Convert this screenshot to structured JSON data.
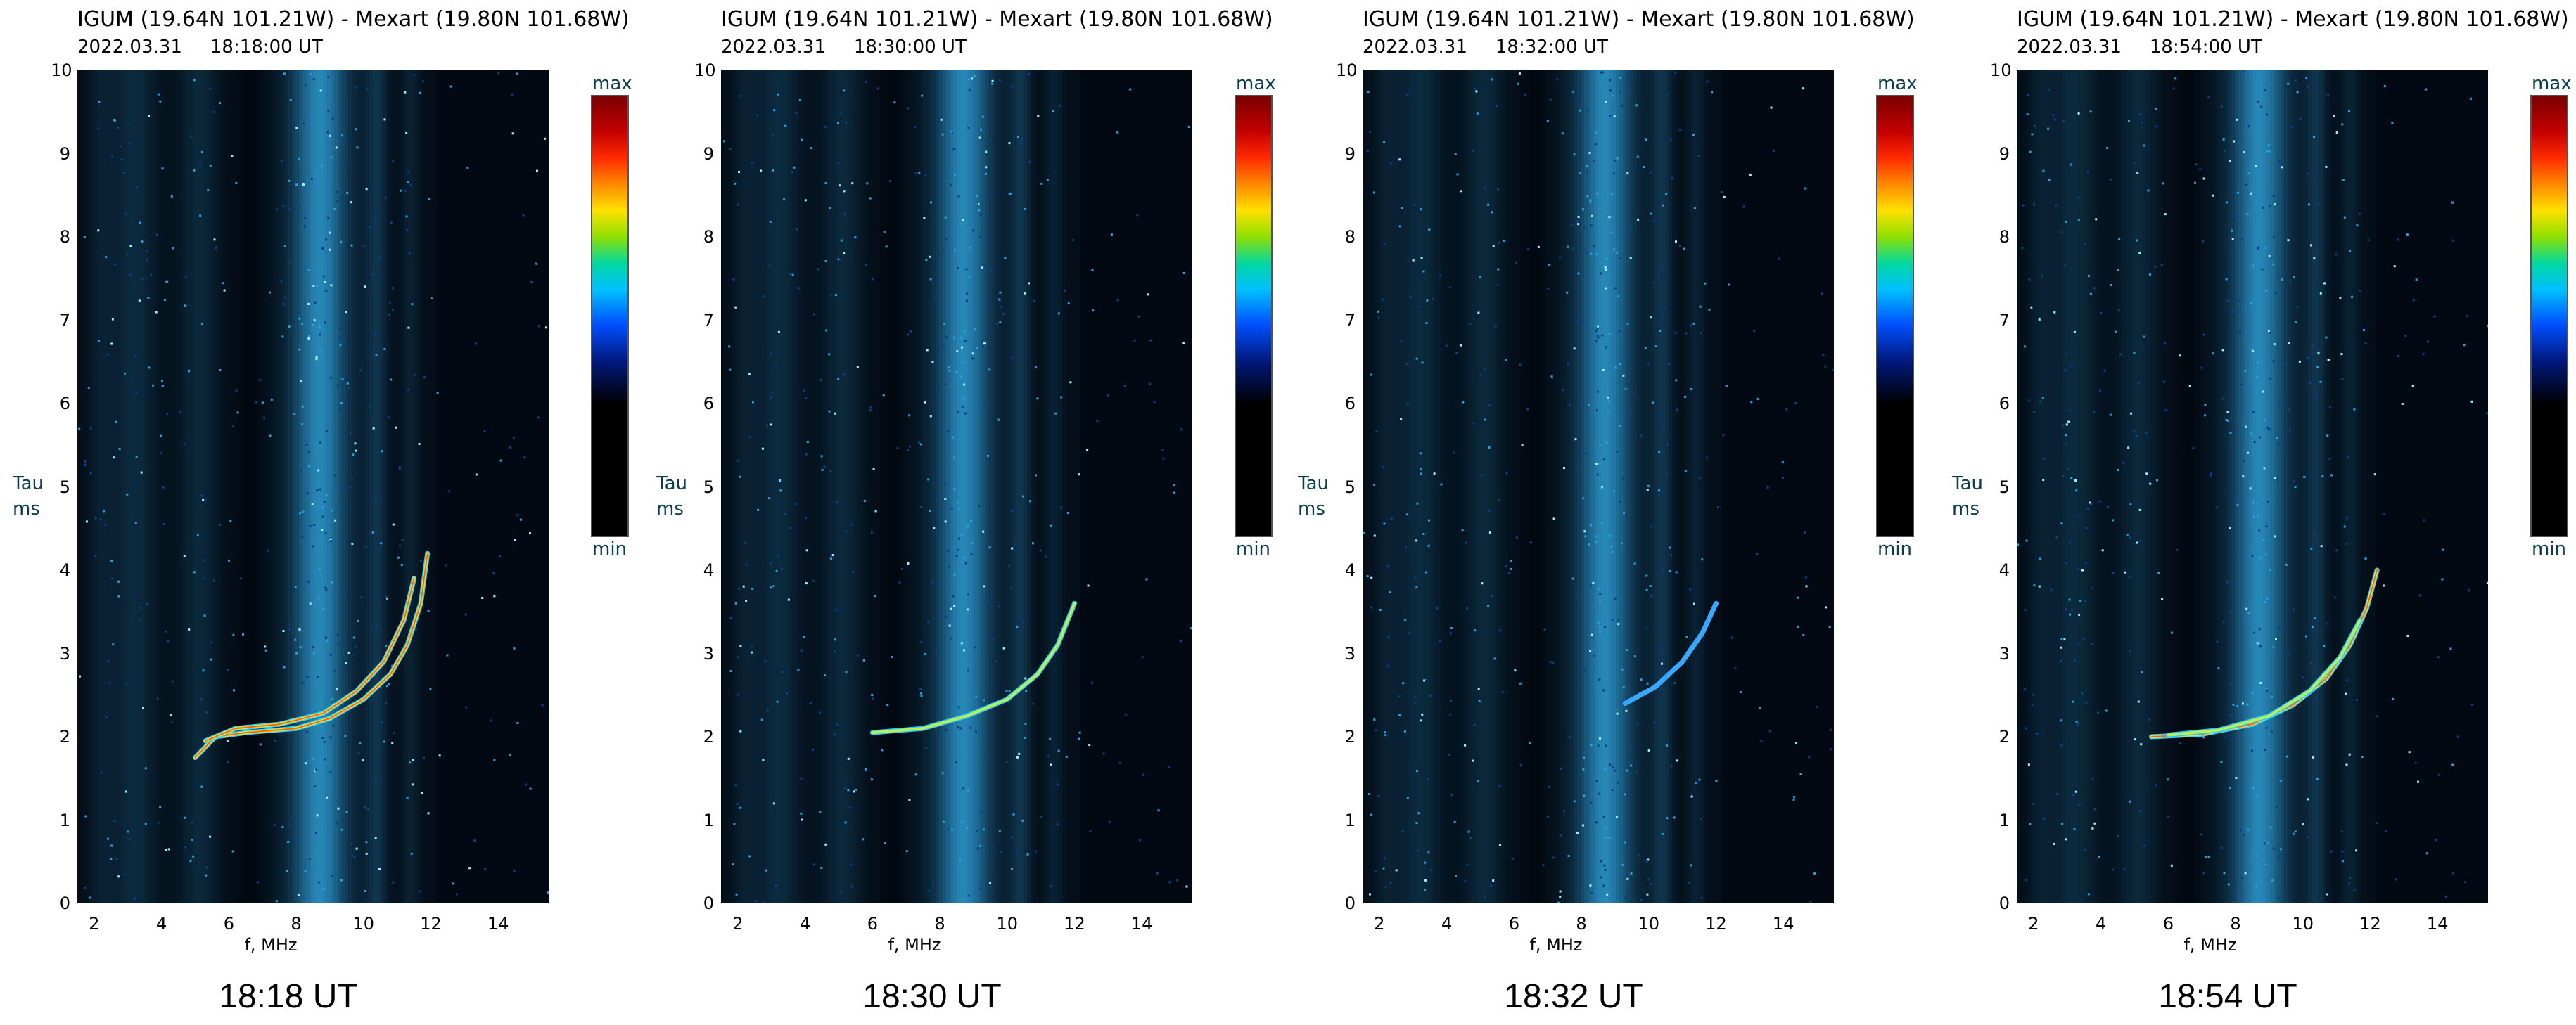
{
  "common": {
    "header_line1": "IGUM (19.64N 101.21W)  -  Mexart (19.80N 101.68W)",
    "y_label_line1": "Tau",
    "y_label_line2": "ms",
    "x_label": "f, MHz",
    "colorbar_max": "max",
    "colorbar_min": "min"
  },
  "chart_data": [
    {
      "type": "heatmap",
      "date": "2022.03.31",
      "time": "18:18:00  UT",
      "caption": "18:18 UT",
      "xlabel": "f, MHz",
      "ylabel": "Tau ms",
      "xlim": [
        1.5,
        15.5
      ],
      "ylim": [
        0,
        10
      ],
      "x_ticks": [
        "2",
        "4",
        "6",
        "8",
        "10",
        "12",
        "14"
      ],
      "y_ticks": [
        "0",
        "1",
        "2",
        "3",
        "4",
        "5",
        "6",
        "7",
        "8",
        "9",
        "10"
      ],
      "colorbar": [
        "min",
        "max"
      ],
      "traces": [
        {
          "points": [
            [
              5.0,
              1.75
            ],
            [
              5.6,
              2.0
            ],
            [
              6.5,
              2.05
            ],
            [
              8.0,
              2.1
            ],
            [
              9.0,
              2.22
            ],
            [
              10.0,
              2.45
            ],
            [
              10.8,
              2.75
            ],
            [
              11.3,
              3.1
            ],
            [
              11.7,
              3.6
            ],
            [
              11.9,
              4.2
            ]
          ],
          "intensity": "high"
        },
        {
          "points": [
            [
              5.3,
              1.95
            ],
            [
              6.2,
              2.1
            ],
            [
              7.5,
              2.15
            ],
            [
              8.8,
              2.28
            ],
            [
              9.8,
              2.55
            ],
            [
              10.6,
              2.9
            ],
            [
              11.2,
              3.4
            ],
            [
              11.5,
              3.9
            ]
          ],
          "intensity": "high"
        }
      ]
    },
    {
      "type": "heatmap",
      "date": "2022.03.31",
      "time": "18:30:00  UT",
      "caption": "18:30 UT",
      "xlabel": "f, MHz",
      "ylabel": "Tau ms",
      "xlim": [
        1.5,
        15.5
      ],
      "ylim": [
        0,
        10
      ],
      "x_ticks": [
        "2",
        "4",
        "6",
        "8",
        "10",
        "12",
        "14"
      ],
      "y_ticks": [
        "0",
        "1",
        "2",
        "3",
        "4",
        "5",
        "6",
        "7",
        "8",
        "9",
        "10"
      ],
      "colorbar": [
        "min",
        "max"
      ],
      "traces": [
        {
          "points": [
            [
              6.0,
              2.05
            ],
            [
              7.5,
              2.1
            ],
            [
              8.8,
              2.25
            ],
            [
              10.0,
              2.45
            ],
            [
              10.9,
              2.75
            ],
            [
              11.5,
              3.1
            ],
            [
              12.0,
              3.6
            ]
          ],
          "intensity": "medium"
        }
      ]
    },
    {
      "type": "heatmap",
      "date": "2022.03.31",
      "time": "18:32:00  UT",
      "caption": "18:32 UT",
      "xlabel": "f, MHz",
      "ylabel": "Tau ms",
      "xlim": [
        1.5,
        15.5
      ],
      "ylim": [
        0,
        10
      ],
      "x_ticks": [
        "2",
        "4",
        "6",
        "8",
        "10",
        "12",
        "14"
      ],
      "y_ticks": [
        "0",
        "1",
        "2",
        "3",
        "4",
        "5",
        "6",
        "7",
        "8",
        "9",
        "10"
      ],
      "colorbar": [
        "min",
        "max"
      ],
      "traces": [
        {
          "points": [
            [
              9.3,
              2.4
            ],
            [
              10.2,
              2.6
            ],
            [
              11.0,
              2.9
            ],
            [
              11.6,
              3.25
            ],
            [
              12.0,
              3.6
            ]
          ],
          "intensity": "low"
        }
      ]
    },
    {
      "type": "heatmap",
      "date": "2022.03.31",
      "time": "18:54:00  UT",
      "caption": "18:54 UT",
      "xlabel": "f, MHz",
      "ylabel": "Tau ms",
      "xlim": [
        1.5,
        15.5
      ],
      "ylim": [
        0,
        10
      ],
      "x_ticks": [
        "2",
        "4",
        "6",
        "8",
        "10",
        "12",
        "14"
      ],
      "y_ticks": [
        "0",
        "1",
        "2",
        "3",
        "4",
        "5",
        "6",
        "7",
        "8",
        "9",
        "10"
      ],
      "colorbar": [
        "min",
        "max"
      ],
      "traces": [
        {
          "points": [
            [
              5.5,
              2.0
            ],
            [
              7.0,
              2.03
            ],
            [
              8.5,
              2.15
            ],
            [
              9.7,
              2.38
            ],
            [
              10.7,
              2.7
            ],
            [
              11.4,
              3.1
            ],
            [
              11.9,
              3.55
            ],
            [
              12.2,
              4.0
            ]
          ],
          "intensity": "high"
        },
        {
          "points": [
            [
              6.0,
              2.02
            ],
            [
              7.5,
              2.08
            ],
            [
              9.0,
              2.25
            ],
            [
              10.2,
              2.55
            ],
            [
              11.1,
              2.95
            ],
            [
              11.7,
              3.4
            ]
          ],
          "intensity": "medium"
        }
      ]
    }
  ]
}
